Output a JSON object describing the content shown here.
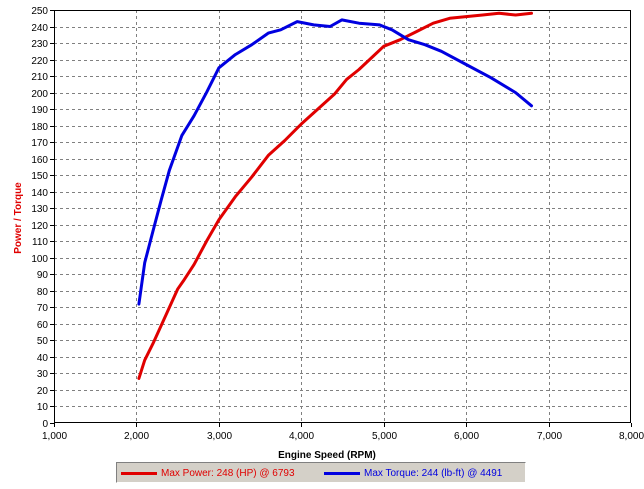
{
  "colors": {
    "power": "#e00000",
    "torque": "#0000e0",
    "ylabel": "#e00000",
    "grid": "#808080"
  },
  "chart_data": {
    "type": "line",
    "xlabel": "Engine Speed (RPM)",
    "ylabel": "Power / Torque",
    "xlim": [
      1000,
      8000
    ],
    "ylim": [
      0,
      250
    ],
    "xticks": [
      1000,
      2000,
      3000,
      4000,
      5000,
      6000,
      7000,
      8000
    ],
    "xtick_labels": [
      "1,000",
      "2,000",
      "3,000",
      "4,000",
      "5,000",
      "6,000",
      "7,000",
      "8,000"
    ],
    "yticks": [
      0,
      10,
      20,
      30,
      40,
      50,
      60,
      70,
      80,
      90,
      100,
      110,
      120,
      130,
      140,
      150,
      160,
      170,
      180,
      190,
      200,
      210,
      220,
      230,
      240,
      250
    ],
    "grid": true,
    "legend_position": "bottom",
    "series": [
      {
        "name": "Max Power: 248 (HP) @ 6793",
        "color": "#e00000",
        "x": [
          2030,
          2100,
          2200,
          2300,
          2400,
          2500,
          2570,
          2700,
          2850,
          3000,
          3200,
          3400,
          3600,
          3800,
          4000,
          4200,
          4400,
          4550,
          4700,
          4850,
          5000,
          5200,
          5400,
          5600,
          5800,
          6000,
          6200,
          6400,
          6600,
          6793
        ],
        "y": [
          27,
          38,
          48,
          59,
          70,
          81,
          86,
          96,
          110,
          123,
          137,
          149,
          162,
          171,
          181,
          190,
          199,
          208,
          214,
          221,
          228,
          232,
          237,
          242,
          245,
          246,
          247,
          248,
          247,
          248
        ]
      },
      {
        "name": "Max Torque: 244 (lb-ft) @ 4491",
        "color": "#0000e0",
        "x": [
          2030,
          2100,
          2200,
          2300,
          2400,
          2550,
          2700,
          2850,
          3000,
          3200,
          3400,
          3600,
          3750,
          3950,
          4150,
          4350,
          4491,
          4700,
          4950,
          5100,
          5300,
          5500,
          5700,
          6000,
          6300,
          6600,
          6793
        ],
        "y": [
          72,
          97,
          116,
          135,
          153,
          174,
          186,
          200,
          215,
          223,
          229,
          236,
          238,
          243,
          241,
          240,
          244,
          242,
          241,
          238,
          232,
          229,
          225,
          217,
          209,
          200,
          192
        ]
      }
    ]
  }
}
